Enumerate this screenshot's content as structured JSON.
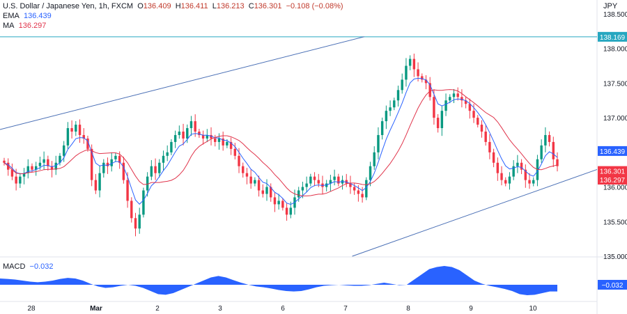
{
  "header": {
    "symbol": "U.S. Dollar / Japanese Yen, 1h, FXCM",
    "open_label": "O",
    "open": "136.409",
    "high_label": "H",
    "high": "136.411",
    "low_label": "L",
    "low": "136.213",
    "close_label": "C",
    "close": "136.301",
    "change": "−0.108 (−0.08%)",
    "ema_label": "EMA",
    "ema_value": "136.439",
    "ma_label": "MA",
    "ma_value": "136.297",
    "currency": "JPY",
    "macd_label": "MACD",
    "macd_value": "−0.032"
  },
  "chart_data": {
    "type": "candlestick",
    "y_axis": {
      "ticks": [
        "135.000",
        "135.500",
        "136.000",
        "136.500",
        "137.000",
        "137.500",
        "138.000",
        "138.500"
      ],
      "range": [
        135.0,
        138.6
      ]
    },
    "x_axis": {
      "ticks": [
        "28",
        "Mar",
        "2",
        "3",
        "6",
        "7",
        "8",
        "9",
        "10"
      ]
    },
    "price_tags": [
      {
        "label": "138.169",
        "value": 138.169,
        "bg": "#26a7c0",
        "fg": "#ffffff"
      },
      {
        "label": "136.439",
        "value": 136.439,
        "bg": "#2962ff",
        "fg": "#ffffff"
      },
      {
        "label": "136.301",
        "value": 136.301,
        "bg": "#f23645",
        "fg": "#ffffff"
      },
      {
        "label": "136.297",
        "value": 136.297,
        "bg": "#f23645",
        "fg": "#ffffff"
      }
    ],
    "horizontal_line": 138.169,
    "channel": {
      "upper": [
        [
          0,
          136.83
        ],
        [
          0.61,
          138.17
        ]
      ],
      "lower": [
        [
          0.59,
          135.0
        ],
        [
          0.95,
          136.1
        ]
      ]
    },
    "candles_close": [
      136.35,
      136.25,
      136.15,
      136.05,
      136.15,
      136.2,
      136.3,
      136.25,
      136.3,
      136.35,
      136.4,
      136.3,
      136.25,
      136.35,
      136.45,
      136.6,
      136.85,
      136.8,
      136.9,
      136.75,
      136.7,
      136.55,
      136.1,
      135.95,
      136.2,
      136.35,
      136.3,
      136.4,
      136.45,
      136.35,
      136.1,
      135.8,
      135.55,
      135.4,
      135.6,
      135.95,
      136.15,
      136.3,
      136.2,
      136.35,
      136.45,
      136.5,
      136.65,
      136.75,
      136.8,
      136.7,
      136.85,
      136.95,
      136.8,
      136.75,
      136.7,
      136.75,
      136.7,
      136.65,
      136.7,
      136.6,
      136.65,
      136.55,
      136.45,
      136.3,
      136.2,
      136.15,
      136.05,
      136.1,
      135.95,
      135.9,
      136.0,
      135.85,
      135.75,
      135.8,
      135.7,
      135.6,
      135.7,
      135.85,
      135.95,
      136.0,
      136.05,
      136.15,
      136.1,
      136.05,
      136.0,
      136.05,
      136.1,
      136.15,
      136.05,
      136.1,
      136.05,
      136.0,
      135.95,
      135.9,
      135.85,
      136.1,
      136.3,
      136.5,
      136.75,
      136.95,
      137.1,
      137.15,
      137.25,
      137.4,
      137.55,
      137.75,
      137.85,
      137.7,
      137.6,
      137.55,
      137.5,
      137.3,
      137.0,
      136.85,
      137.1,
      137.25,
      137.3,
      137.35,
      137.3,
      137.25,
      137.2,
      137.1,
      137.0,
      136.9,
      136.8,
      136.65,
      136.5,
      136.35,
      136.2,
      136.1,
      136.05,
      136.15,
      136.3,
      136.35,
      136.25,
      136.1,
      136.05,
      136.1,
      136.4,
      136.6,
      136.75,
      136.65,
      136.4,
      136.301
    ],
    "macd": [
      0.03,
      0.028,
      0.025,
      0.02,
      0.015,
      0.012,
      0.015,
      0.02,
      0.028,
      0.033,
      0.03,
      0.02,
      0.005,
      -0.008,
      -0.015,
      -0.012,
      -0.005,
      0.0,
      -0.005,
      -0.015,
      -0.03,
      -0.045,
      -0.048,
      -0.04,
      -0.025,
      -0.01,
      0.005,
      0.02,
      0.035,
      0.042,
      0.035,
      0.022,
      0.01,
      0.0,
      -0.008,
      -0.012,
      -0.018,
      -0.025,
      -0.03,
      -0.032,
      -0.03,
      -0.022,
      -0.012,
      -0.005,
      -0.002,
      0.0,
      -0.003,
      -0.005,
      -0.005,
      -0.002,
      0.004,
      0.01,
      0.004,
      -0.002,
      0.0,
      0.025,
      0.05,
      0.075,
      0.085,
      0.09,
      0.085,
      0.07,
      0.045,
      0.02,
      0.005,
      -0.005,
      -0.012,
      -0.02,
      -0.03,
      -0.045,
      -0.05,
      -0.048,
      -0.04,
      -0.032,
      -0.032
    ],
    "colors": {
      "up": "#089981",
      "down": "#f23645",
      "ema": "#2962ff",
      "ma": "#e0334a",
      "macd_fill": "#2962ff",
      "hline": "#26a7c0",
      "channel": "#4a6fb5"
    }
  }
}
